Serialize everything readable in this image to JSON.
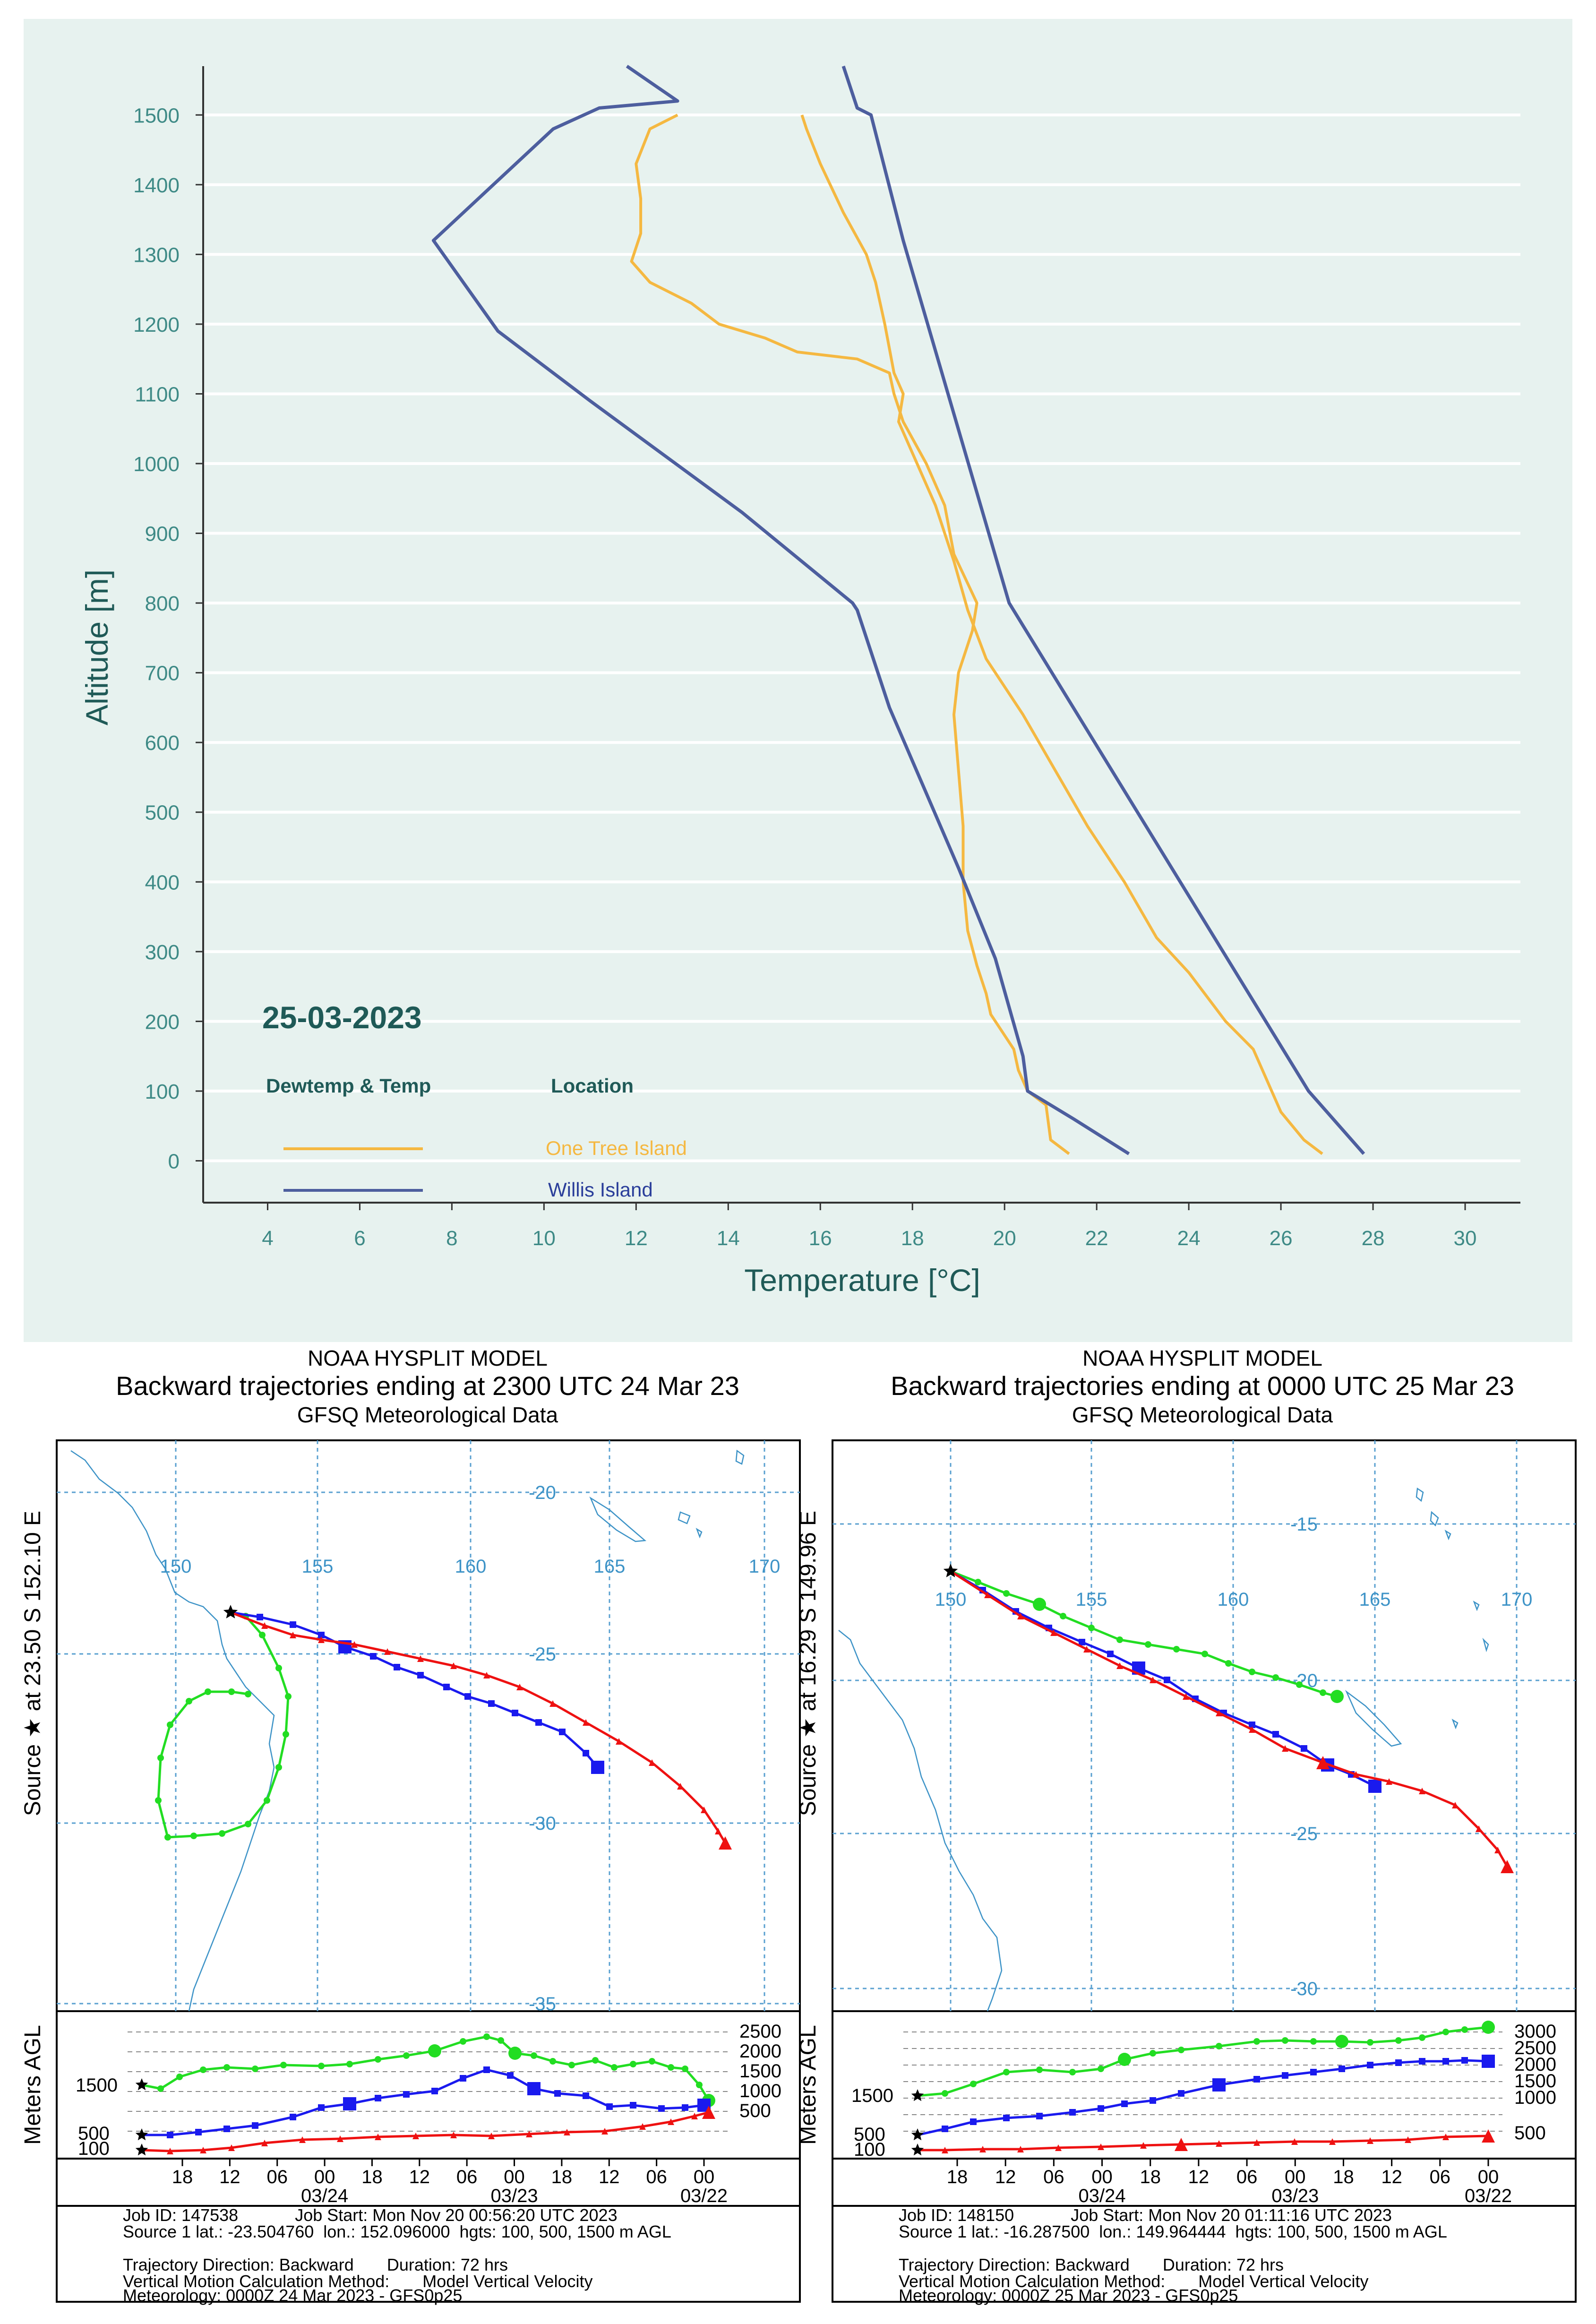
{
  "profile": {
    "date_label": "25-03-2023",
    "legend_col1_header": "Dewtemp & Temp",
    "legend_col2_header": "Location",
    "xlabel": "Temperature [°C]",
    "ylabel": "Altitude [m]",
    "colors": {
      "panel_bg": "#e7f2ef",
      "one_tree": "#f5b841",
      "willis": "#4d5e9e",
      "text": "#1f5a57",
      "tick_text": "#3e8a86"
    }
  },
  "chart_data": [
    {
      "type": "line",
      "xlim": [
        2.6,
        31.2
      ],
      "ylim": [
        -60,
        1570
      ],
      "xticks": [
        4,
        6,
        8,
        10,
        12,
        14,
        16,
        18,
        20,
        22,
        24,
        26,
        28,
        30
      ],
      "yticks": [
        0,
        100,
        200,
        300,
        400,
        500,
        600,
        700,
        800,
        900,
        1000,
        1100,
        1200,
        1300,
        1400,
        1500
      ],
      "grid": "horizontal",
      "legend": "bottom-left",
      "series": [
        {
          "name": "One Tree Island",
          "color": "#f5b841",
          "points": [
            [
              21.4,
              10
            ],
            [
              21.0,
              30
            ],
            [
              20.9,
              80
            ],
            [
              20.5,
              100
            ],
            [
              20.3,
              130
            ],
            [
              20.2,
              160
            ],
            [
              19.7,
              210
            ],
            [
              19.6,
              240
            ],
            [
              19.4,
              280
            ],
            [
              19.2,
              330
            ],
            [
              19.1,
              400
            ],
            [
              19.1,
              480
            ],
            [
              19.0,
              560
            ],
            [
              18.9,
              640
            ],
            [
              19.0,
              700
            ],
            [
              19.3,
              760
            ],
            [
              19.4,
              800
            ],
            [
              18.9,
              870
            ],
            [
              18.7,
              940
            ],
            [
              18.3,
              1000
            ],
            [
              17.8,
              1060
            ],
            [
              17.6,
              1100
            ],
            [
              17.5,
              1130
            ],
            [
              16.8,
              1150
            ],
            [
              15.5,
              1160
            ],
            [
              14.8,
              1180
            ],
            [
              13.8,
              1200
            ],
            [
              13.2,
              1230
            ],
            [
              12.3,
              1260
            ],
            [
              11.9,
              1290
            ],
            [
              12.1,
              1330
            ],
            [
              12.1,
              1380
            ],
            [
              12.0,
              1430
            ],
            [
              12.3,
              1480
            ],
            [
              12.9,
              1500
            ]
          ]
        },
        {
          "name": "One Tree Island",
          "color": "#f5b841",
          "points": [
            [
              26.9,
              10
            ],
            [
              26.5,
              30
            ],
            [
              26.0,
              70
            ],
            [
              25.8,
              100
            ],
            [
              25.4,
              160
            ],
            [
              24.8,
              200
            ],
            [
              24.0,
              270
            ],
            [
              23.3,
              320
            ],
            [
              22.6,
              400
            ],
            [
              21.8,
              480
            ],
            [
              21.1,
              560
            ],
            [
              20.4,
              640
            ],
            [
              19.6,
              720
            ],
            [
              19.2,
              790
            ],
            [
              18.9,
              860
            ],
            [
              18.5,
              940
            ],
            [
              18.1,
              1000
            ],
            [
              17.7,
              1060
            ],
            [
              17.8,
              1100
            ],
            [
              17.6,
              1130
            ],
            [
              17.4,
              1200
            ],
            [
              17.2,
              1260
            ],
            [
              17.0,
              1300
            ],
            [
              16.5,
              1360
            ],
            [
              16.0,
              1430
            ],
            [
              15.7,
              1480
            ],
            [
              15.6,
              1500
            ]
          ]
        },
        {
          "name": "Willis Island",
          "color": "#4d5e9e",
          "points": [
            [
              22.7,
              10
            ],
            [
              21.5,
              60
            ],
            [
              20.5,
              100
            ],
            [
              20.4,
              150
            ],
            [
              19.8,
              290
            ],
            [
              19.0,
              420
            ],
            [
              17.5,
              650
            ],
            [
              16.8,
              790
            ],
            [
              16.7,
              800
            ],
            [
              14.3,
              930
            ],
            [
              11.0,
              1090
            ],
            [
              9.0,
              1190
            ],
            [
              7.6,
              1320
            ],
            [
              10.2,
              1480
            ],
            [
              11.2,
              1510
            ],
            [
              12.9,
              1520
            ],
            [
              11.8,
              1570
            ]
          ]
        },
        {
          "name": "Willis Island",
          "color": "#4d5e9e",
          "points": [
            [
              27.8,
              10
            ],
            [
              26.6,
              100
            ],
            [
              20.1,
              800
            ],
            [
              17.8,
              1320
            ],
            [
              17.1,
              1500
            ],
            [
              16.8,
              1510
            ],
            [
              16.5,
              1570
            ]
          ]
        }
      ]
    },
    {
      "type": "trajectory",
      "header": [
        "NOAA HYSPLIT MODEL",
        "Backward trajectories ending at 2300 UTC 24 Mar 23",
        "GFSQ Meteorological Data"
      ],
      "source_label": "Source ★ at 23.50 S 152.10 E",
      "lon_ticks": [
        "150",
        "155",
        "160",
        "165",
        "170"
      ],
      "lat_ticks": [
        "-20",
        "-25",
        "-30",
        "-35"
      ],
      "height_axis_label": "Meters AGL",
      "height_levels": [
        "2500",
        "2000",
        "1500",
        "1000",
        "500"
      ],
      "source_heights": [
        "1500",
        "500",
        "100"
      ],
      "time_ticks": [
        "18",
        "12",
        "06",
        "00",
        "18",
        "12",
        "06",
        "00",
        "18",
        "12",
        "06",
        "00"
      ],
      "date_ticks": [
        "03/24",
        "03/23",
        "03/22"
      ],
      "footer": [
        "Job ID: 147538            Job Start: Mon Nov 20 00:56:20 UTC 2023",
        "Source 1 lat.: -23.504760  lon.: 152.096000  hgts: 100, 500, 1500 m AGL",
        "",
        "Trajectory Direction: Backward       Duration: 72 hrs",
        "Vertical Motion Calculation Method:       Model Vertical Velocity",
        "Meteorology: 0000Z 24 Mar 2023 - GFS0p25"
      ]
    },
    {
      "type": "trajectory",
      "header": [
        "NOAA HYSPLIT MODEL",
        "Backward trajectories ending at 0000 UTC 25 Mar 23",
        "GFSQ Meteorological Data"
      ],
      "source_label": "Source ★ at 16.29 S 149.96 E",
      "lon_ticks": [
        "150",
        "155",
        "160",
        "165",
        "170"
      ],
      "lat_ticks": [
        "-15",
        "-20",
        "-25",
        "-30"
      ],
      "height_axis_label": "Meters AGL",
      "height_levels": [
        "3000",
        "2500",
        "2000",
        "1500",
        "1000",
        "500"
      ],
      "source_heights": [
        "1500",
        "500",
        "100"
      ],
      "time_ticks": [
        "18",
        "12",
        "06",
        "00",
        "18",
        "12",
        "06",
        "00",
        "18",
        "12",
        "06",
        "00"
      ],
      "date_ticks": [
        "03/24",
        "03/23",
        "03/22"
      ],
      "footer": [
        "Job ID: 148150            Job Start: Mon Nov 20 01:11:16 UTC 2023",
        "Source 1 lat.: -16.287500  lon.: 149.964444  hgts: 100, 500, 1500 m AGL",
        "",
        "Trajectory Direction: Backward       Duration: 72 hrs",
        "Vertical Motion Calculation Method:       Model Vertical Velocity",
        "Meteorology: 0000Z 25 Mar 2023 - GFS0p25"
      ]
    }
  ]
}
